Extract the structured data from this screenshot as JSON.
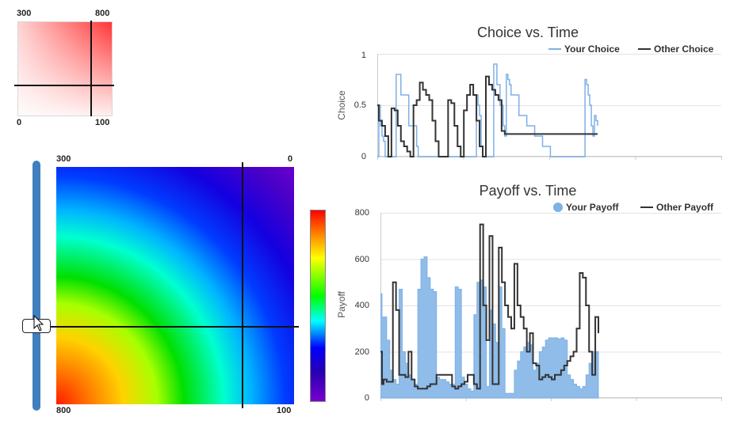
{
  "mini_heatmap": {
    "top_left": "300",
    "top_right": "800",
    "bottom_left": "0",
    "bottom_right": "100",
    "color": "#ff3b3b"
  },
  "main_heatmap": {
    "top_left": "300",
    "top_right": "0",
    "bottom_left": "800",
    "bottom_right": "100"
  },
  "slider": {
    "value_fraction": 0.4
  },
  "colors": {
    "your": "#7fb0e6",
    "other": "#333333",
    "your_fill": "#8fbce8"
  },
  "chart_data": [
    {
      "type": "line",
      "title": "Choice vs. Time",
      "xlabel": "",
      "ylabel": "Choice",
      "ylim": [
        0,
        1
      ],
      "yticks": [
        "0",
        "0.5",
        "1"
      ],
      "legend": "top-right",
      "grid": true,
      "series": [
        {
          "name": "Your Choice",
          "x": [
            0,
            2,
            4,
            6,
            8,
            10,
            11,
            12,
            14,
            16,
            18,
            20,
            24,
            30,
            40,
            50,
            52,
            54,
            56,
            58,
            60,
            62,
            64,
            66,
            70,
            76,
            80,
            84,
            88,
            92,
            96,
            100,
            104,
            110,
            116,
            120,
            124,
            126,
            128,
            130,
            132,
            134,
            136,
            138,
            140,
            142,
            144,
            148,
            152,
            156,
            160,
            162,
            164,
            166,
            168,
            170,
            180,
            190,
            200,
            210,
            220,
            230,
            240,
            250,
            252,
            254,
            256,
            258,
            260,
            262,
            264,
            266,
            268,
            270,
            272,
            274,
            276,
            278,
            280
          ],
          "y": [
            0,
            0.5,
            0.3,
            0.2,
            0.15,
            0,
            0,
            0,
            0,
            0,
            0,
            0,
            0.8,
            0.6,
            0.3,
            0.1,
            0,
            0,
            0,
            0,
            0,
            0,
            0,
            0,
            0,
            0,
            0,
            0,
            0,
            0,
            0,
            0,
            0,
            0,
            0,
            0,
            0,
            0.6,
            0.5,
            0.4,
            0.1,
            0,
            0,
            0,
            0,
            0,
            0,
            0.9,
            0.7,
            0.5,
            0.3,
            0.2,
            0.8,
            0.75,
            0.7,
            0.6,
            0.4,
            0.3,
            0.2,
            0.1,
            0,
            0,
            0,
            0,
            0,
            0,
            0,
            0,
            0,
            0,
            0.75,
            0.7,
            0.6,
            0.5,
            0.3,
            0.2,
            0.4,
            0.35,
            0.3
          ]
        },
        {
          "name": "Other Choice",
          "x": [
            0,
            2,
            6,
            10,
            14,
            18,
            22,
            26,
            30,
            34,
            38,
            42,
            46,
            50,
            54,
            58,
            62,
            66,
            70,
            74,
            78,
            82,
            86,
            90,
            94,
            98,
            102,
            106,
            110,
            114,
            118,
            122,
            126,
            130,
            134,
            138,
            142,
            146,
            150,
            154,
            158,
            162,
            166,
            170,
            174,
            178,
            182,
            186,
            190,
            194,
            198,
            202,
            206,
            210,
            214,
            218,
            222,
            226,
            230,
            234,
            238,
            242,
            246,
            250,
            254,
            258,
            262,
            266,
            270,
            274,
            278,
            280
          ],
          "y": [
            0.5,
            0.35,
            0.3,
            0.2,
            0,
            0.47,
            0.45,
            0.3,
            0.15,
            0.1,
            0.05,
            0,
            0.5,
            0.55,
            0.72,
            0.65,
            0.6,
            0.55,
            0.35,
            0.15,
            0,
            0,
            0,
            0.55,
            0.52,
            0.3,
            0.1,
            0,
            0.45,
            0.6,
            0.7,
            0.6,
            0.35,
            0.1,
            0,
            0.78,
            0.7,
            0.65,
            0.6,
            0.55,
            0.25,
            0.22,
            0.22,
            0.22,
            0.22,
            0.22,
            0.22,
            0.22,
            0.22,
            0.22,
            0.22,
            0.22,
            0.22,
            0.22,
            0.22,
            0.22,
            0.22,
            0.22,
            0.22,
            0.22,
            0.22,
            0.22,
            0.22,
            0.22,
            0.22,
            0.22,
            0.22,
            0.22,
            0.22,
            0.22,
            0.22,
            0.22
          ]
        }
      ]
    },
    {
      "type": "area",
      "title": "Payoff vs. Time",
      "xlabel": "",
      "ylabel": "Payoff",
      "ylim": [
        0,
        800
      ],
      "yticks": [
        "0",
        "200",
        "400",
        "600",
        "800"
      ],
      "legend": "top-right",
      "grid": true,
      "series": [
        {
          "name": "Your Payoff",
          "x": [
            0,
            2,
            4,
            8,
            12,
            16,
            20,
            24,
            28,
            32,
            36,
            40,
            44,
            48,
            52,
            56,
            60,
            64,
            68,
            72,
            76,
            80,
            84,
            88,
            92,
            96,
            100,
            104,
            108,
            112,
            116,
            120,
            124,
            128,
            132,
            136,
            140,
            144,
            148,
            152,
            156,
            160,
            164,
            168,
            172,
            176,
            180,
            184,
            188,
            192,
            196,
            200,
            204,
            208,
            212,
            216,
            220,
            224,
            228,
            232,
            236,
            240,
            244,
            248,
            252,
            256,
            260,
            264,
            268,
            272,
            276,
            280
          ],
          "y": [
            450,
            350,
            350,
            250,
            120,
            80,
            60,
            470,
            200,
            150,
            100,
            80,
            60,
            470,
            600,
            610,
            520,
            470,
            460,
            90,
            80,
            80,
            70,
            60,
            60,
            480,
            470,
            90,
            60,
            40,
            30,
            360,
            500,
            510,
            480,
            50,
            380,
            320,
            240,
            480,
            300,
            20,
            20,
            20,
            120,
            160,
            200,
            220,
            240,
            230,
            120,
            150,
            200,
            220,
            250,
            260,
            260,
            260,
            255,
            260,
            250,
            100,
            80,
            60,
            50,
            40,
            50,
            100,
            150,
            200,
            200,
            200
          ]
        },
        {
          "name": "Other Payoff",
          "x": [
            0,
            2,
            4,
            8,
            12,
            16,
            20,
            24,
            28,
            32,
            36,
            40,
            44,
            48,
            52,
            56,
            60,
            64,
            68,
            72,
            76,
            80,
            84,
            88,
            92,
            96,
            100,
            104,
            108,
            112,
            116,
            120,
            124,
            128,
            132,
            136,
            140,
            144,
            148,
            152,
            156,
            160,
            164,
            168,
            172,
            176,
            180,
            184,
            188,
            192,
            196,
            200,
            204,
            208,
            212,
            216,
            220,
            224,
            228,
            232,
            236,
            240,
            244,
            248,
            252,
            256,
            260,
            264,
            268,
            272,
            276,
            280
          ],
          "y": [
            200,
            60,
            80,
            70,
            70,
            500,
            380,
            100,
            100,
            90,
            200,
            80,
            50,
            40,
            40,
            40,
            50,
            60,
            60,
            100,
            100,
            100,
            100,
            100,
            50,
            40,
            50,
            60,
            70,
            100,
            100,
            60,
            40,
            750,
            400,
            250,
            700,
            60,
            60,
            650,
            500,
            400,
            350,
            300,
            580,
            400,
            350,
            300,
            200,
            280,
            150,
            140,
            80,
            90,
            100,
            90,
            80,
            100,
            100,
            120,
            140,
            160,
            180,
            200,
            300,
            540,
            520,
            400,
            200,
            100,
            350,
            280
          ]
        }
      ]
    }
  ]
}
